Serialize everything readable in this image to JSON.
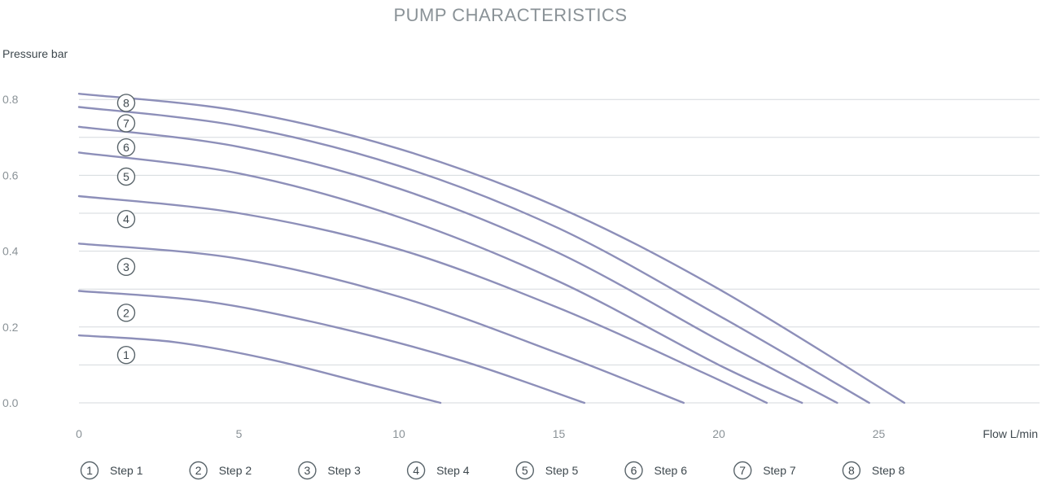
{
  "chart_data": {
    "type": "line",
    "title": "PUMP CHARACTERISTICS",
    "xlabel": "Flow L/min",
    "ylabel": "Pressure bar",
    "xlim": [
      0,
      30
    ],
    "ylim": [
      0,
      0.8
    ],
    "xticks": [
      0,
      5,
      10,
      15,
      20,
      25
    ],
    "yticks": [
      0.0,
      0.2,
      0.4,
      0.6,
      0.8
    ],
    "xtick_labels": [
      "0",
      "5",
      "10",
      "15",
      "20",
      "25"
    ],
    "ytick_labels": [
      "0.0",
      "0.2",
      "0.4",
      "0.6",
      "0.8"
    ],
    "grid": true,
    "legend_position": "bottom",
    "line_color": "#8d8fb9",
    "series": [
      {
        "name": "Step 1",
        "badge": "1",
        "x": [
          0,
          3,
          6,
          9,
          11.3
        ],
        "y": [
          0.178,
          0.16,
          0.114,
          0.05,
          0.0
        ]
      },
      {
        "name": "Step 2",
        "badge": "2",
        "x": [
          0,
          4,
          8,
          12,
          15.8
        ],
        "y": [
          0.295,
          0.267,
          0.2,
          0.11,
          0.0
        ]
      },
      {
        "name": "Step 3",
        "badge": "3",
        "x": [
          0,
          5,
          10,
          15,
          18.9
        ],
        "y": [
          0.42,
          0.38,
          0.28,
          0.13,
          0.0
        ]
      },
      {
        "name": "Step 4",
        "badge": "4",
        "x": [
          0,
          5,
          10,
          15,
          19.5,
          21.5
        ],
        "y": [
          0.545,
          0.5,
          0.405,
          0.25,
          0.08,
          0.0
        ]
      },
      {
        "name": "Step 5",
        "badge": "5",
        "x": [
          0,
          5,
          10,
          15,
          20,
          22.6
        ],
        "y": [
          0.66,
          0.605,
          0.49,
          0.32,
          0.1,
          0.0
        ]
      },
      {
        "name": "Step 6",
        "badge": "6",
        "x": [
          0,
          5,
          10,
          15,
          20,
          23.7
        ],
        "y": [
          0.728,
          0.675,
          0.565,
          0.395,
          0.165,
          0.0
        ]
      },
      {
        "name": "Step 7",
        "badge": "7",
        "x": [
          0,
          5,
          10,
          15,
          20,
          24.7
        ],
        "y": [
          0.78,
          0.73,
          0.625,
          0.46,
          0.23,
          0.0
        ]
      },
      {
        "name": "Step 8",
        "badge": "8",
        "x": [
          0,
          5,
          10,
          15,
          20,
          25.8
        ],
        "y": [
          0.815,
          0.77,
          0.67,
          0.515,
          0.3,
          0.0
        ]
      }
    ]
  }
}
